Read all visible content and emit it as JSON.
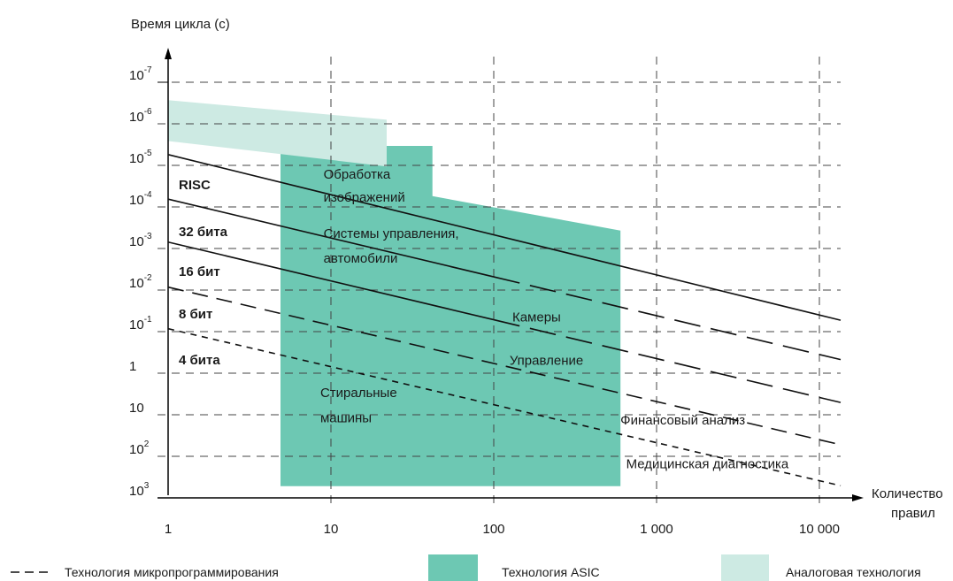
{
  "chart_data": {
    "type": "line",
    "ylabel": "Время цикла (с)",
    "xlabel": "Количество правил",
    "x_scale": "log",
    "xlim": [
      1,
      15000
    ],
    "x_ticks": [
      {
        "value": 1,
        "label": "1"
      },
      {
        "value": 10,
        "label": "10"
      },
      {
        "value": 100,
        "label": "100"
      },
      {
        "value": 1000,
        "label": "1 000"
      },
      {
        "value": 10000,
        "label": "10 000"
      }
    ],
    "y_scale": "log (inverted: 10³ at bottom, 10⁻⁷ at top)",
    "ylim": [
      1000,
      1e-07
    ],
    "y_ticks": [
      {
        "value": 1e-07,
        "base": "10",
        "exp": "-7"
      },
      {
        "value": 1e-06,
        "base": "10",
        "exp": "-6"
      },
      {
        "value": 1e-05,
        "base": "10",
        "exp": "-5"
      },
      {
        "value": 0.0001,
        "base": "10",
        "exp": "-4"
      },
      {
        "value": 0.001,
        "base": "10",
        "exp": "-3"
      },
      {
        "value": 0.01,
        "base": "10",
        "exp": "-2"
      },
      {
        "value": 0.1,
        "base": "10",
        "exp": "-1"
      },
      {
        "value": 1,
        "base": "1",
        "exp": ""
      },
      {
        "value": 10,
        "base": "10",
        "exp": ""
      },
      {
        "value": 100,
        "base": "10",
        "exp": "2"
      },
      {
        "value": 1000,
        "base": "10",
        "exp": "3"
      }
    ],
    "grid": true,
    "series": [
      {
        "name": "RISC",
        "line": "solid",
        "points": [
          [
            1,
            5.5e-06
          ],
          [
            15000,
            0.059
          ]
        ],
        "solid_until": 15000
      },
      {
        "name": "32 бита",
        "line": "long-dash",
        "points": [
          [
            1,
            6.5e-05
          ],
          [
            15000,
            0.52
          ]
        ],
        "solid_until": 100
      },
      {
        "name": "16 бит",
        "line": "long-dash",
        "points": [
          [
            1,
            0.0007
          ],
          [
            15000,
            5.6
          ]
        ],
        "solid_until": 100
      },
      {
        "name": "8 бит",
        "line": "dash",
        "points": [
          [
            1,
            0.0085
          ],
          [
            15000,
            58
          ]
        ],
        "solid_until": 1
      },
      {
        "name": "4 бита",
        "line": "short-dash",
        "points": [
          [
            1,
            0.085
          ],
          [
            15000,
            560
          ]
        ],
        "solid_until": 1
      }
    ],
    "regions": [
      {
        "name": "Технология ASIC",
        "color": "#6dc8b3",
        "polygon": [
          [
            4.9,
            520
          ],
          [
            600,
            520
          ],
          [
            600,
            0.00037
          ],
          [
            42,
            5.5e-05
          ],
          [
            42,
            3.4e-06
          ],
          [
            4.9,
            3.4e-06
          ]
        ]
      },
      {
        "name": "Аналоговая технология",
        "color": "#cdeae3",
        "polygon": [
          [
            1,
            2.6e-06
          ],
          [
            22,
            1.06e-05
          ],
          [
            22,
            8e-07
          ],
          [
            1,
            2.7e-07
          ]
        ]
      }
    ],
    "annotations": [
      {
        "text": "Обработка",
        "x": 9,
        "y": 2.1e-05
      },
      {
        "text": "изображений",
        "x": 9,
        "y": 7.5e-05
      },
      {
        "text": "Системы управления,",
        "x": 9,
        "y": 0.00056
      },
      {
        "text": "автомобили",
        "x": 9,
        "y": 0.0022
      },
      {
        "text": "Камеры",
        "x": 130,
        "y": 0.057
      },
      {
        "text": "Управление",
        "x": 125,
        "y": 0.63
      },
      {
        "text": "Стиральные",
        "x": 8.6,
        "y": 3.8
      },
      {
        "text": "машины",
        "x": 8.6,
        "y": 15
      },
      {
        "text": "Финансовый анализ",
        "x": 600,
        "y": 17
      },
      {
        "text": "Медицинская диагностика",
        "x": 650,
        "y": 195
      }
    ],
    "legend": {
      "placement": "bottom",
      "items": [
        {
          "label": "Технология микропрограммирования",
          "kind": "dash"
        },
        {
          "label": "Технология ASIC",
          "kind": "swatch",
          "color": "#6dc8b3"
        },
        {
          "label": "Аналоговая технология",
          "kind": "swatch",
          "color": "#cdeae3"
        }
      ]
    }
  }
}
